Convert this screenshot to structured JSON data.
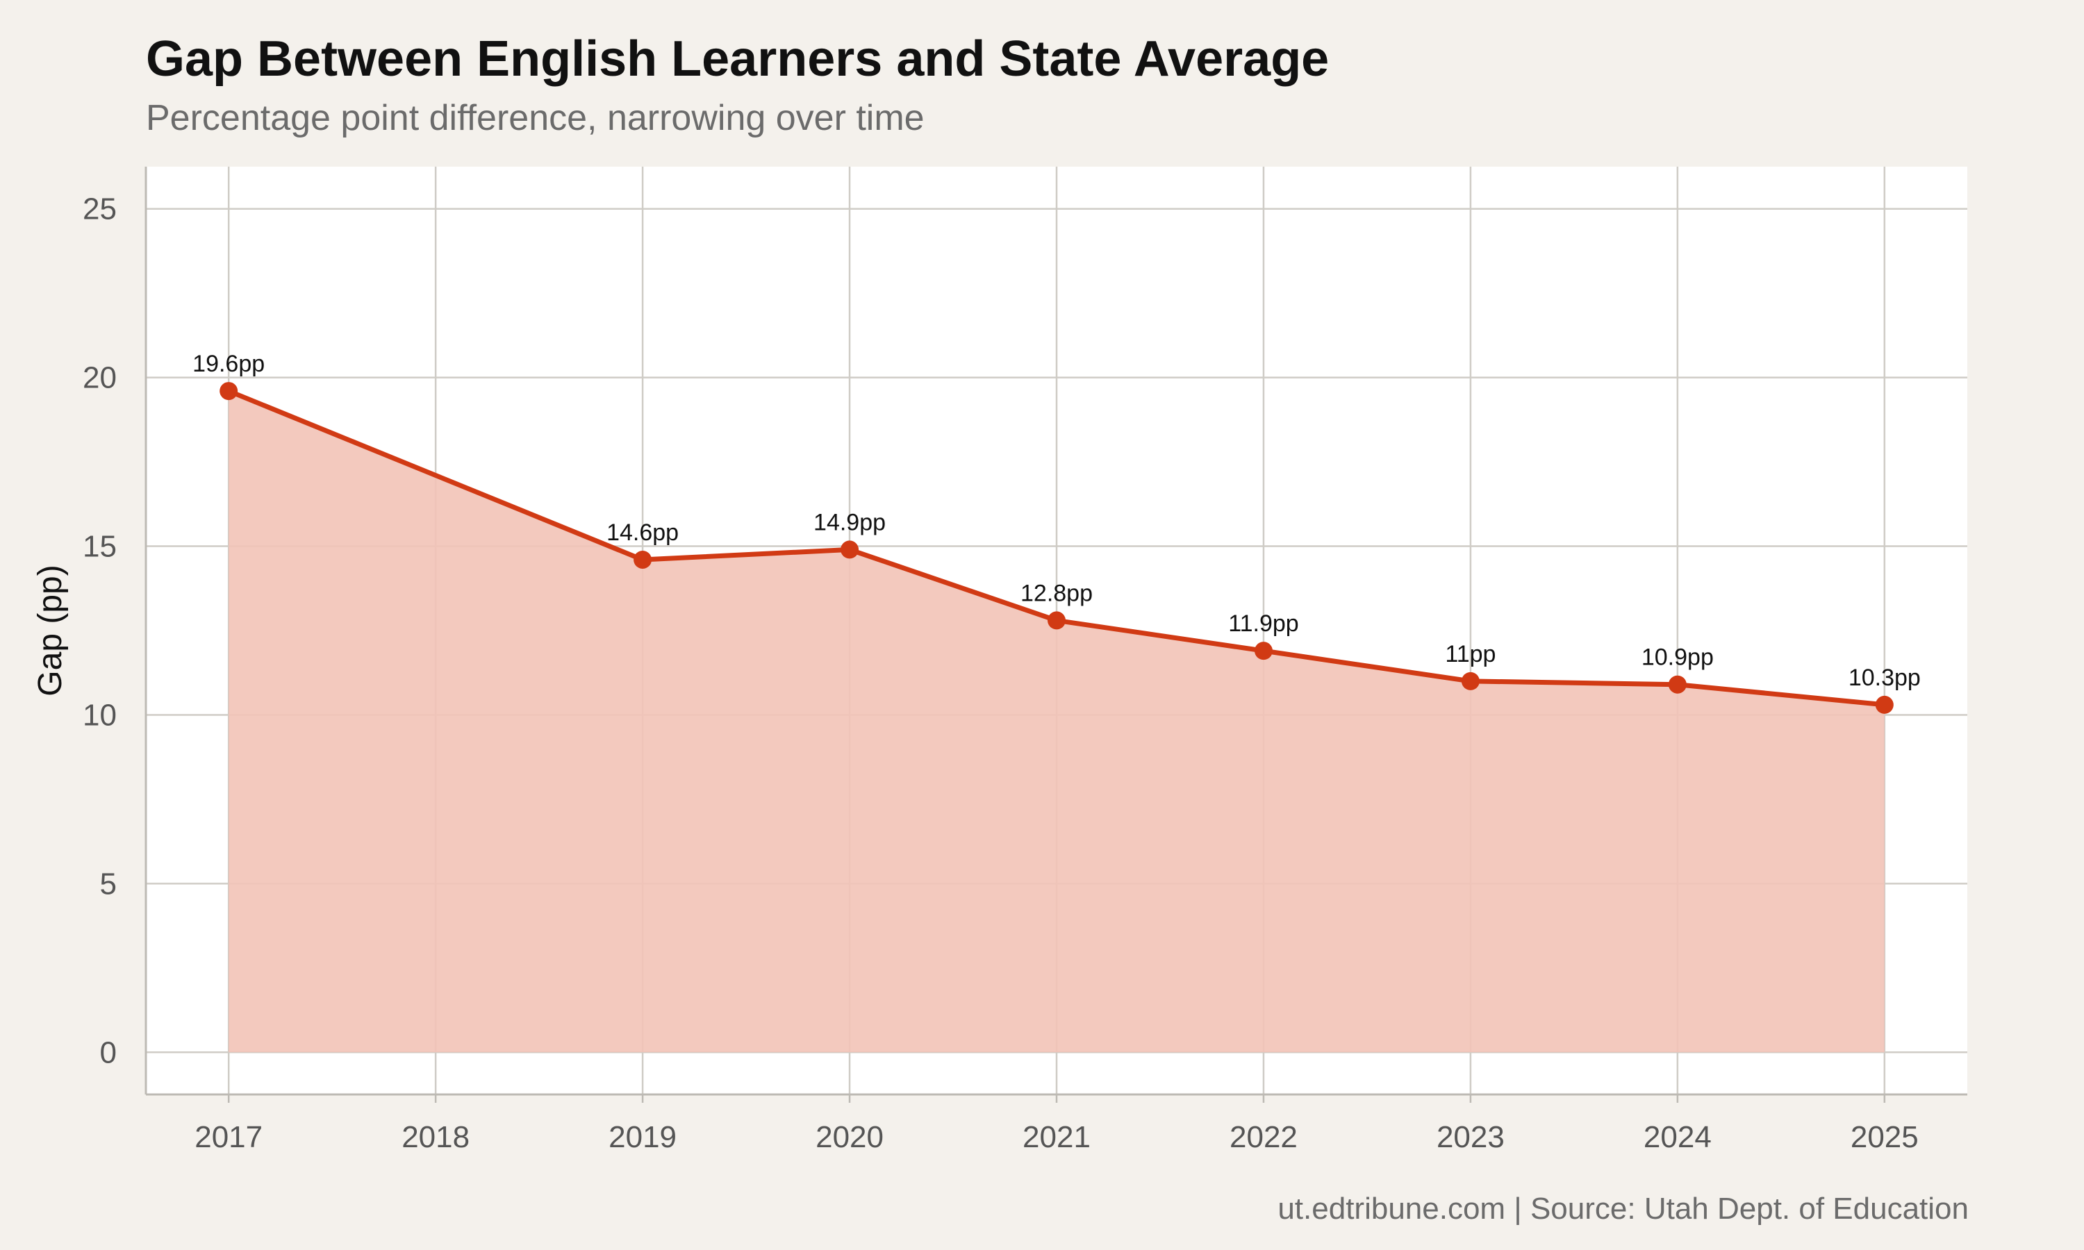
{
  "chart_data": {
    "type": "area",
    "title": "Gap Between English Learners and State Average",
    "subtitle": "Percentage point difference, narrowing over time",
    "caption": "ut.edtribune.com | Source: Utah Dept. of Education",
    "xlabel": "",
    "ylabel": "Gap (pp)",
    "x": [
      2017,
      2019,
      2020,
      2021,
      2022,
      2023,
      2024,
      2025
    ],
    "x_ticks": [
      "2017",
      "2018",
      "2019",
      "2020",
      "2021",
      "2022",
      "2023",
      "2024",
      "2025"
    ],
    "xlim": [
      2016.6,
      2025.4
    ],
    "series": [
      {
        "values": [
          19.6,
          14.6,
          14.9,
          12.8,
          11.9,
          11.0,
          10.9,
          10.3
        ],
        "labels": [
          "19.6pp",
          "14.6pp",
          "14.9pp",
          "12.8pp",
          "11.9pp",
          "11pp",
          "10.9pp",
          "10.3pp"
        ],
        "color": "#d13a14"
      }
    ],
    "y_ticks": [
      0,
      5,
      10,
      15,
      20,
      25
    ],
    "ylim": [
      -1.25,
      26.25
    ],
    "area_fill": "#f2c3b7",
    "grid": true,
    "legend": "none"
  }
}
